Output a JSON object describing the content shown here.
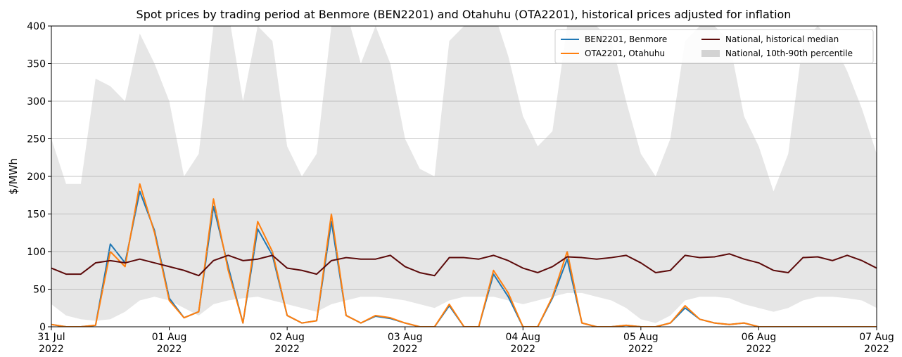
{
  "chart_data": {
    "type": "line",
    "title": "Spot prices by trading period at Benmore (BEN2201) and Otahuhu (OTA2201), historical prices adjusted for inflation",
    "y_label": "$/MWh",
    "x": [
      0,
      0.125,
      0.25,
      0.375,
      0.5,
      0.625,
      0.75,
      0.875,
      1,
      1.125,
      1.25,
      1.375,
      1.5,
      1.625,
      1.75,
      1.875,
      2,
      2.125,
      2.25,
      2.375,
      2.5,
      2.625,
      2.75,
      2.875,
      3,
      3.125,
      3.25,
      3.375,
      3.5,
      3.625,
      3.75,
      3.875,
      4,
      4.125,
      4.25,
      4.375,
      4.5,
      4.625,
      4.75,
      4.875,
      5,
      5.125,
      5.25,
      5.375,
      5.5,
      5.625,
      5.75,
      5.875,
      6,
      6.125,
      6.25,
      6.375,
      6.5,
      6.625,
      6.75,
      6.875,
      7
    ],
    "series": [
      {
        "name": "BEN2201, Benmore",
        "color": "#1f77b4",
        "values": [
          3,
          0,
          0,
          2,
          110,
          85,
          180,
          128,
          38,
          12,
          20,
          160,
          80,
          5,
          130,
          95,
          15,
          5,
          8,
          140,
          15,
          5,
          14,
          11,
          5,
          0,
          0,
          28,
          0,
          0,
          70,
          40,
          0,
          0,
          38,
          90,
          5,
          0,
          0,
          2,
          0,
          0,
          5,
          25,
          10,
          5,
          3,
          5,
          0,
          0,
          0,
          0,
          0,
          0,
          0,
          0,
          0
        ]
      },
      {
        "name": "OTA2201, Otahuhu",
        "color": "#ff7f0e",
        "values": [
          3,
          0,
          0,
          2,
          100,
          80,
          190,
          125,
          35,
          12,
          20,
          170,
          75,
          5,
          140,
          100,
          15,
          5,
          8,
          150,
          15,
          5,
          15,
          12,
          5,
          0,
          0,
          30,
          0,
          0,
          75,
          45,
          0,
          0,
          40,
          100,
          5,
          0,
          0,
          2,
          0,
          0,
          5,
          28,
          10,
          5,
          3,
          5,
          0,
          0,
          0,
          0,
          0,
          0,
          0,
          0,
          0
        ]
      },
      {
        "name": "National, historical median",
        "color": "#5c0a0a",
        "values": [
          78,
          70,
          70,
          85,
          88,
          85,
          90,
          85,
          80,
          75,
          68,
          88,
          95,
          88,
          90,
          95,
          78,
          75,
          70,
          88,
          92,
          90,
          90,
          95,
          80,
          72,
          68,
          92,
          92,
          90,
          95,
          88,
          78,
          72,
          80,
          93,
          92,
          90,
          92,
          95,
          85,
          72,
          75,
          95,
          92,
          93,
          97,
          90,
          85,
          75,
          72,
          92,
          93,
          88,
          95,
          88,
          78
        ]
      }
    ],
    "band": {
      "name": "National, 10th-90th percentile",
      "color": "#e6e6e6",
      "legend_color": "#d3d3d3",
      "low": [
        30,
        15,
        10,
        8,
        10,
        20,
        35,
        40,
        35,
        25,
        15,
        30,
        35,
        38,
        40,
        35,
        30,
        25,
        20,
        30,
        35,
        40,
        40,
        38,
        35,
        30,
        25,
        35,
        40,
        40,
        40,
        35,
        30,
        35,
        40,
        45,
        45,
        40,
        35,
        25,
        10,
        5,
        15,
        35,
        40,
        40,
        38,
        30,
        25,
        20,
        25,
        35,
        40,
        40,
        38,
        35,
        25
      ],
      "high": [
        250,
        190,
        190,
        330,
        320,
        300,
        390,
        350,
        300,
        200,
        230,
        400,
        420,
        300,
        400,
        380,
        240,
        200,
        230,
        400,
        420,
        350,
        400,
        350,
        250,
        210,
        200,
        380,
        400,
        400,
        420,
        360,
        280,
        240,
        260,
        400,
        420,
        400,
        380,
        300,
        230,
        200,
        250,
        380,
        400,
        400,
        380,
        280,
        240,
        180,
        230,
        380,
        400,
        380,
        340,
        290,
        230
      ]
    },
    "xlim": [
      0,
      7
    ],
    "xticks": [
      {
        "value": 0,
        "label": "31 Jul\n2022"
      },
      {
        "value": 1,
        "label": "01 Aug\n2022"
      },
      {
        "value": 2,
        "label": "02 Aug\n2022"
      },
      {
        "value": 3,
        "label": "03 Aug\n2022"
      },
      {
        "value": 4,
        "label": "04 Aug\n2022"
      },
      {
        "value": 5,
        "label": "05 Aug\n2022"
      },
      {
        "value": 6,
        "label": "06 Aug\n2022"
      },
      {
        "value": 7,
        "label": "07 Aug\n2022"
      }
    ],
    "ylim": [
      0,
      400
    ],
    "yticks": [
      0,
      50,
      100,
      150,
      200,
      250,
      300,
      350,
      400
    ],
    "grid": true,
    "legend": "upper right"
  }
}
